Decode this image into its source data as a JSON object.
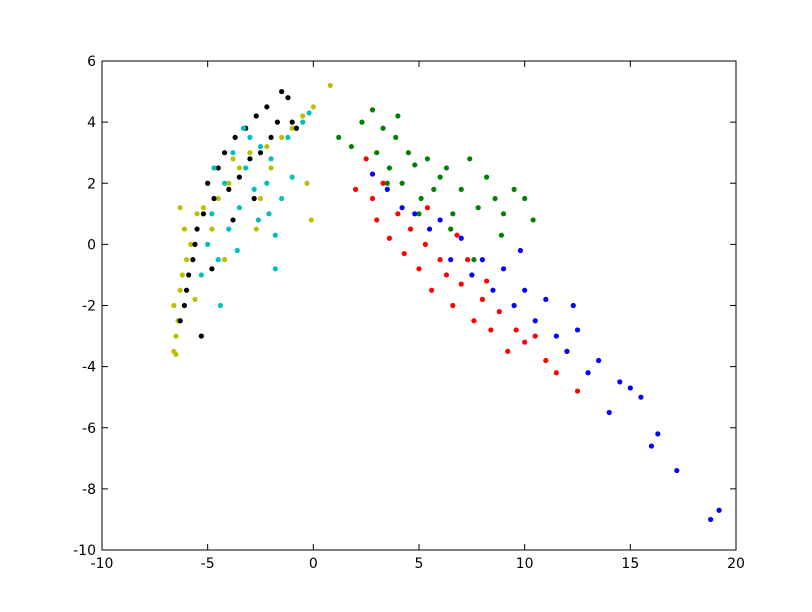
{
  "chart_data": {
    "type": "scatter",
    "xlim": [
      -10,
      20
    ],
    "ylim": [
      -10,
      6
    ],
    "xticks": [
      -10,
      -5,
      0,
      5,
      10,
      15,
      20
    ],
    "yticks": [
      -10,
      -8,
      -6,
      -4,
      -2,
      0,
      2,
      4,
      6
    ],
    "grid": false,
    "series": [
      {
        "color": "#bfbf00",
        "x": [
          -6.6,
          -6.5,
          -6.4,
          -6.6,
          -6.3,
          -6.2,
          -6.5,
          -6.0,
          -5.8,
          -6.1,
          -5.5,
          -5.2,
          -4.8,
          -4.5,
          -4.0,
          -3.5,
          -3.0,
          -2.5,
          -2.0,
          -1.5,
          -1.0,
          -0.5,
          0.0,
          0.8,
          -0.3,
          -0.1,
          -2.7,
          -4.2,
          -5.6,
          -6.3,
          -3.8,
          -2.2
        ],
        "y": [
          -3.5,
          -3.0,
          -2.5,
          -2.0,
          -1.5,
          -1.0,
          -3.6,
          -0.5,
          0.0,
          0.5,
          1.0,
          1.2,
          0.5,
          1.5,
          2.0,
          2.5,
          3.0,
          1.5,
          2.5,
          3.5,
          3.8,
          4.2,
          4.5,
          5.2,
          2.0,
          0.8,
          0.5,
          -0.5,
          -1.8,
          1.2,
          2.8,
          3.2
        ]
      },
      {
        "color": "#000000",
        "x": [
          -6.3,
          -6.1,
          -5.9,
          -5.7,
          -5.5,
          -5.2,
          -5.0,
          -4.7,
          -4.5,
          -4.2,
          -4.0,
          -3.7,
          -3.5,
          -3.2,
          -3.0,
          -2.7,
          -2.5,
          -2.2,
          -2.0,
          -1.7,
          -1.5,
          -1.2,
          -1.0,
          -0.8,
          -6.0,
          -5.6,
          -4.8,
          -3.8,
          -2.8,
          -5.3
        ],
        "y": [
          -2.5,
          -2.0,
          -1.0,
          -0.5,
          0.5,
          1.0,
          2.0,
          1.5,
          2.5,
          3.0,
          1.8,
          3.5,
          2.2,
          3.8,
          2.8,
          4.2,
          3.0,
          4.5,
          3.5,
          4.0,
          5.0,
          4.8,
          4.0,
          3.8,
          -1.5,
          0.0,
          -0.8,
          0.8,
          1.5,
          -3.0
        ]
      },
      {
        "color": "#00bfbf",
        "x": [
          -5.3,
          -5.0,
          -4.8,
          -4.5,
          -4.2,
          -4.0,
          -3.8,
          -3.5,
          -3.2,
          -3.0,
          -2.8,
          -2.5,
          -2.2,
          -2.0,
          -1.8,
          -1.5,
          -1.2,
          -1.0,
          -0.5,
          -0.2,
          -1.8,
          -4.4,
          -3.6,
          -2.6,
          -4.7,
          -3.3,
          -2.1
        ],
        "y": [
          -1.0,
          0.0,
          1.0,
          -0.5,
          2.0,
          0.5,
          3.0,
          1.2,
          2.5,
          3.5,
          1.8,
          3.2,
          2.0,
          2.8,
          -0.8,
          1.5,
          3.5,
          2.2,
          4.0,
          4.3,
          0.3,
          -2.0,
          -0.2,
          0.8,
          2.5,
          3.8,
          1.0
        ]
      },
      {
        "color": "#008000",
        "x": [
          1.2,
          1.8,
          2.3,
          2.8,
          3.0,
          3.3,
          3.6,
          3.9,
          4.2,
          4.5,
          4.8,
          5.1,
          5.4,
          5.7,
          6.0,
          6.3,
          6.6,
          7.0,
          7.4,
          7.8,
          8.2,
          8.6,
          9.0,
          9.5,
          10.0,
          10.4,
          4.0,
          5.0,
          6.5,
          3.5,
          8.9,
          7.6
        ],
        "y": [
          3.5,
          3.2,
          4.0,
          4.4,
          3.0,
          3.8,
          2.5,
          3.5,
          2.0,
          3.0,
          2.6,
          1.5,
          2.8,
          1.8,
          2.2,
          2.5,
          1.0,
          1.8,
          2.8,
          1.2,
          2.2,
          1.5,
          1.0,
          1.8,
          1.5,
          0.8,
          4.2,
          1.0,
          0.5,
          2.0,
          0.3,
          -0.5
        ]
      },
      {
        "color": "#ff0000",
        "x": [
          2.0,
          2.5,
          2.8,
          3.0,
          3.3,
          3.6,
          4.0,
          4.3,
          4.6,
          5.0,
          5.3,
          5.6,
          6.0,
          6.3,
          6.6,
          7.0,
          7.3,
          7.6,
          8.0,
          8.4,
          8.8,
          9.2,
          9.6,
          10.0,
          10.5,
          11.0,
          11.5,
          12.0,
          12.5,
          5.4,
          6.8,
          8.2
        ],
        "y": [
          1.8,
          2.8,
          1.5,
          0.8,
          2.0,
          0.2,
          1.0,
          -0.3,
          0.5,
          -0.8,
          0.0,
          -1.5,
          -0.5,
          -1.0,
          -2.0,
          -1.3,
          -0.5,
          -2.5,
          -1.8,
          -2.8,
          -2.2,
          -3.5,
          -2.8,
          -3.2,
          -3.0,
          -3.8,
          -4.2,
          -3.5,
          -4.8,
          1.2,
          0.3,
          -1.2
        ]
      },
      {
        "color": "#0000ff",
        "x": [
          2.8,
          3.5,
          4.2,
          4.8,
          5.5,
          6.0,
          6.5,
          7.0,
          7.5,
          8.0,
          8.5,
          9.0,
          9.5,
          10.0,
          10.5,
          11.0,
          11.5,
          12.0,
          12.5,
          13.0,
          13.5,
          14.0,
          14.5,
          15.0,
          15.5,
          16.0,
          16.3,
          17.2,
          18.8,
          19.2,
          9.8,
          12.3
        ],
        "y": [
          2.3,
          1.8,
          1.2,
          1.0,
          0.5,
          0.8,
          -0.5,
          0.2,
          -1.0,
          -0.5,
          -1.5,
          -0.8,
          -2.0,
          -1.5,
          -2.5,
          -1.8,
          -3.0,
          -3.5,
          -2.8,
          -4.2,
          -3.8,
          -5.5,
          -4.5,
          -4.7,
          -5.0,
          -6.6,
          -6.2,
          -7.4,
          -9.0,
          -8.7,
          -0.2,
          -2.0
        ]
      }
    ]
  }
}
